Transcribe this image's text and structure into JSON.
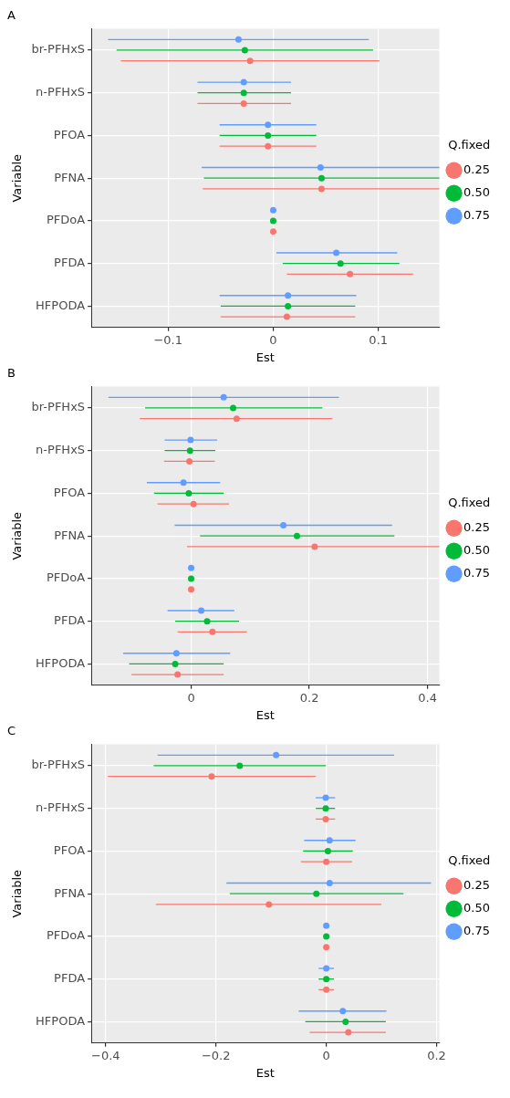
{
  "chart_data": [
    {
      "type": "scatter",
      "orientation": "horizontal",
      "title": "A",
      "xlabel": "Est",
      "ylabel": "Variable",
      "legend_title": "Q.fixed",
      "legend": "right",
      "grid": true,
      "marker": "circle",
      "categories": [
        "br-PFHxS",
        "n-PFHxS",
        "PFOA",
        "PFNA",
        "PFDoA",
        "PFDA",
        "HFPODA"
      ],
      "xlim": [
        -0.173,
        0.158
      ],
      "xticks": [
        {
          "value": -0.1,
          "label": "−0.1"
        },
        0,
        0.1
      ],
      "series": [
        {
          "name": "0.25",
          "color": "#f8766d",
          "values": [
            -0.022,
            -0.028,
            -0.005,
            0.046,
            0,
            0.073,
            0.013
          ],
          "errors": [
            [
              -0.145,
              0.101
            ],
            [
              -0.072,
              0.017
            ],
            [
              -0.051,
              0.041
            ],
            [
              -0.067,
              0.158
            ],
            null,
            [
              0.013,
              0.133
            ],
            [
              -0.05,
              0.078
            ]
          ]
        },
        {
          "name": "0.50",
          "color": "#00ba38",
          "values": [
            -0.027,
            -0.028,
            -0.005,
            0.046,
            0,
            0.064,
            0.014
          ],
          "errors": [
            [
              -0.149,
              0.095
            ],
            [
              -0.072,
              0.017
            ],
            [
              -0.051,
              0.041
            ],
            [
              -0.066,
              0.158
            ],
            null,
            [
              0.009,
              0.12
            ],
            [
              -0.05,
              0.078
            ]
          ]
        },
        {
          "name": "0.75",
          "color": "#619cff",
          "values": [
            -0.033,
            -0.028,
            -0.005,
            0.045,
            0,
            0.06,
            0.014
          ],
          "errors": [
            [
              -0.157,
              0.091
            ],
            [
              -0.072,
              0.017
            ],
            [
              -0.051,
              0.041
            ],
            [
              -0.068,
              0.158
            ],
            null,
            [
              0.003,
              0.118
            ],
            [
              -0.051,
              0.079
            ]
          ]
        }
      ]
    },
    {
      "type": "scatter",
      "orientation": "horizontal",
      "title": "B",
      "xlabel": "Est",
      "ylabel": "Variable",
      "legend_title": "Q.fixed",
      "legend": "right",
      "grid": true,
      "marker": "circle",
      "categories": [
        "br-PFHxS",
        "n-PFHxS",
        "PFOA",
        "PFNA",
        "PFDoA",
        "PFDA",
        "HFPODA"
      ],
      "xlim": [
        -0.169,
        0.42
      ],
      "xticks": [
        0,
        0.2,
        0.4
      ],
      "series": [
        {
          "name": "0.25",
          "color": "#f8766d",
          "values": [
            0.077,
            -0.003,
            0.004,
            0.209,
            0,
            0.036,
            -0.023
          ],
          "errors": [
            [
              -0.087,
              0.239
            ],
            [
              -0.046,
              0.04
            ],
            [
              -0.057,
              0.064
            ],
            [
              -0.007,
              0.42
            ],
            null,
            [
              -0.023,
              0.094
            ],
            [
              -0.101,
              0.055
            ]
          ]
        },
        {
          "name": "0.50",
          "color": "#00ba38",
          "values": [
            0.071,
            -0.002,
            -0.004,
            0.179,
            0,
            0.027,
            -0.027
          ],
          "errors": [
            [
              -0.078,
              0.222
            ],
            [
              -0.045,
              0.041
            ],
            [
              -0.063,
              0.055
            ],
            [
              0.015,
              0.344
            ],
            null,
            [
              -0.027,
              0.081
            ],
            [
              -0.105,
              0.055
            ]
          ]
        },
        {
          "name": "0.75",
          "color": "#619cff",
          "values": [
            0.055,
            -0.001,
            -0.013,
            0.156,
            0,
            0.017,
            -0.025
          ],
          "errors": [
            [
              -0.14,
              0.25
            ],
            [
              -0.045,
              0.044
            ],
            [
              -0.075,
              0.049
            ],
            [
              -0.028,
              0.34
            ],
            null,
            [
              -0.04,
              0.073
            ],
            [
              -0.115,
              0.066
            ]
          ]
        }
      ]
    },
    {
      "type": "scatter",
      "orientation": "horizontal",
      "title": "C",
      "xlabel": "Est",
      "ylabel": "Variable",
      "legend_title": "Q.fixed",
      "legend": "right",
      "grid": true,
      "marker": "circle",
      "categories": [
        "br-PFHxS",
        "n-PFHxS",
        "PFOA",
        "PFNA",
        "PFDoA",
        "PFDA",
        "HFPODA"
      ],
      "xlim": [
        -0.426,
        0.205
      ],
      "xticks": [
        {
          "value": -0.4,
          "label": "−0.4"
        },
        {
          "value": -0.2,
          "label": "−0.2"
        },
        0,
        0.2
      ],
      "series": [
        {
          "name": "0.25",
          "color": "#f8766d",
          "values": [
            -0.208,
            -0.001,
            0,
            -0.104,
            0,
            0,
            0.04
          ],
          "errors": [
            [
              -0.396,
              -0.019
            ],
            [
              -0.019,
              0.016
            ],
            [
              -0.046,
              0.047
            ],
            [
              -0.309,
              0.1
            ],
            null,
            [
              -0.014,
              0.014
            ],
            [
              -0.03,
              0.108
            ]
          ]
        },
        {
          "name": "0.50",
          "color": "#00ba38",
          "values": [
            -0.157,
            -0.001,
            0.003,
            -0.018,
            0,
            0,
            0.035
          ],
          "errors": [
            [
              -0.313,
              -0.001
            ],
            [
              -0.019,
              0.016
            ],
            [
              -0.042,
              0.048
            ],
            [
              -0.175,
              0.14
            ],
            null,
            [
              -0.014,
              0.014
            ],
            [
              -0.038,
              0.108
            ]
          ]
        },
        {
          "name": "0.75",
          "color": "#619cff",
          "values": [
            -0.091,
            -0.001,
            0.006,
            0.006,
            0,
            0,
            0.03
          ],
          "errors": [
            [
              -0.306,
              0.123
            ],
            [
              -0.019,
              0.016
            ],
            [
              -0.04,
              0.053
            ],
            [
              -0.181,
              0.19
            ],
            null,
            [
              -0.014,
              0.014
            ],
            [
              -0.05,
              0.109
            ]
          ]
        }
      ]
    }
  ]
}
